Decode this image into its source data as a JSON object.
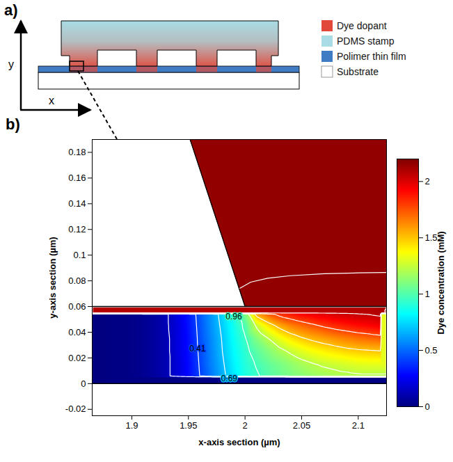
{
  "schematic": {
    "label": "a)",
    "axis_labels": {
      "x": "x",
      "y": "y"
    },
    "legend": [
      {
        "name": "Dye dopant",
        "color": "#e2483a"
      },
      {
        "name": "PDMS stamp",
        "color": "#a9dce4"
      },
      {
        "name": "Polimer thin film",
        "color": "#3f7cc4"
      },
      {
        "name": "Substrate",
        "color": "#ffffff"
      }
    ]
  },
  "chart_data": {
    "type": "heatmap",
    "label": "b)",
    "xlabel": "x-axis section (µm)",
    "ylabel": "y-axis section (µm)",
    "xlim": [
      1.865,
      2.125
    ],
    "ylim": [
      -0.025,
      0.19
    ],
    "xticks": [
      1.9,
      1.95,
      2,
      2.05,
      2.1
    ],
    "yticks": [
      -0.02,
      0,
      0.02,
      0.04,
      0.06,
      0.08,
      0.1,
      0.12,
      0.14,
      0.16,
      0.18
    ],
    "colorbar": {
      "label": "Dye concentration (mM)",
      "range": [
        0,
        2.2
      ],
      "ticks": [
        0,
        0.5,
        1,
        1.5,
        2
      ]
    },
    "film": {
      "y_range": [
        0,
        0.06
      ],
      "x": [
        1.87,
        1.88,
        1.89,
        1.9,
        1.91,
        1.92,
        1.93,
        1.94,
        1.95,
        1.96,
        1.97,
        1.98,
        1.99,
        2.0,
        2.01,
        2.02,
        2.03,
        2.04,
        2.05,
        2.06,
        2.07,
        2.08,
        2.09,
        2.1,
        2.11,
        2.12
      ],
      "y": [
        0.055,
        0.045,
        0.035,
        0.025,
        0.015,
        0.005
      ],
      "values": [
        [
          0,
          0.01,
          0.01,
          0.02,
          0.04,
          0.07,
          0.12,
          0.21,
          0.32,
          0.46,
          0.6,
          0.74,
          0.88,
          1.1,
          1.6,
          1.75,
          1.85,
          1.9,
          1.95,
          1.98,
          2.0,
          2.03,
          2.05,
          2.07,
          2.08,
          2.1
        ],
        [
          0,
          0.01,
          0.01,
          0.02,
          0.04,
          0.07,
          0.12,
          0.2,
          0.31,
          0.45,
          0.59,
          0.72,
          0.86,
          0.99,
          1.25,
          1.42,
          1.55,
          1.64,
          1.7,
          1.75,
          1.8,
          1.84,
          1.87,
          1.9,
          1.92,
          1.95
        ],
        [
          0,
          0.01,
          0.01,
          0.02,
          0.04,
          0.07,
          0.11,
          0.2,
          0.3,
          0.44,
          0.57,
          0.7,
          0.84,
          0.95,
          1.1,
          1.22,
          1.33,
          1.42,
          1.49,
          1.54,
          1.58,
          1.62,
          1.65,
          1.68,
          1.7,
          1.72
        ],
        [
          0,
          0.01,
          0.01,
          0.02,
          0.04,
          0.07,
          0.11,
          0.2,
          0.3,
          0.43,
          0.56,
          0.69,
          0.82,
          0.92,
          1.02,
          1.1,
          1.18,
          1.25,
          1.31,
          1.36,
          1.4,
          1.43,
          1.46,
          1.48,
          1.49,
          1.5
        ],
        [
          0,
          0.01,
          0.01,
          0.02,
          0.04,
          0.07,
          0.11,
          0.19,
          0.29,
          0.42,
          0.55,
          0.67,
          0.8,
          0.9,
          0.97,
          1.03,
          1.08,
          1.13,
          1.18,
          1.22,
          1.25,
          1.27,
          1.29,
          1.31,
          1.32,
          1.32
        ],
        [
          0,
          0.01,
          0.01,
          0.02,
          0.04,
          0.07,
          0.11,
          0.19,
          0.29,
          0.41,
          0.53,
          0.65,
          0.78,
          0.88,
          0.94,
          1.0,
          1.04,
          1.08,
          1.11,
          1.14,
          1.16,
          1.18,
          1.19,
          1.2,
          1.2,
          1.2
        ]
      ]
    },
    "stamp": {
      "edge": {
        "x": [
          2.0,
          1.944
        ],
        "y": [
          0.06,
          0.21
        ]
      },
      "value": 2.16,
      "contour": {
        "x": [
          1.995,
          2.005,
          2.02,
          2.04,
          2.07,
          2.1,
          2.125
        ],
        "y": [
          0.074,
          0.079,
          0.082,
          0.084,
          0.0855,
          0.0862,
          0.0865
        ]
      }
    },
    "contour_levels": [
      0.14,
      0.41,
      0.69,
      0.96,
      1.23,
      1.51,
      1.78,
      2.06
    ],
    "contour_labels": [
      {
        "value": 0.96,
        "x": 1.99,
        "y": 0.052
      },
      {
        "value": 0.41,
        "x": 1.958,
        "y": 0.027
      },
      {
        "value": 0.69,
        "x": 1.986,
        "y": 0.004
      }
    ]
  }
}
